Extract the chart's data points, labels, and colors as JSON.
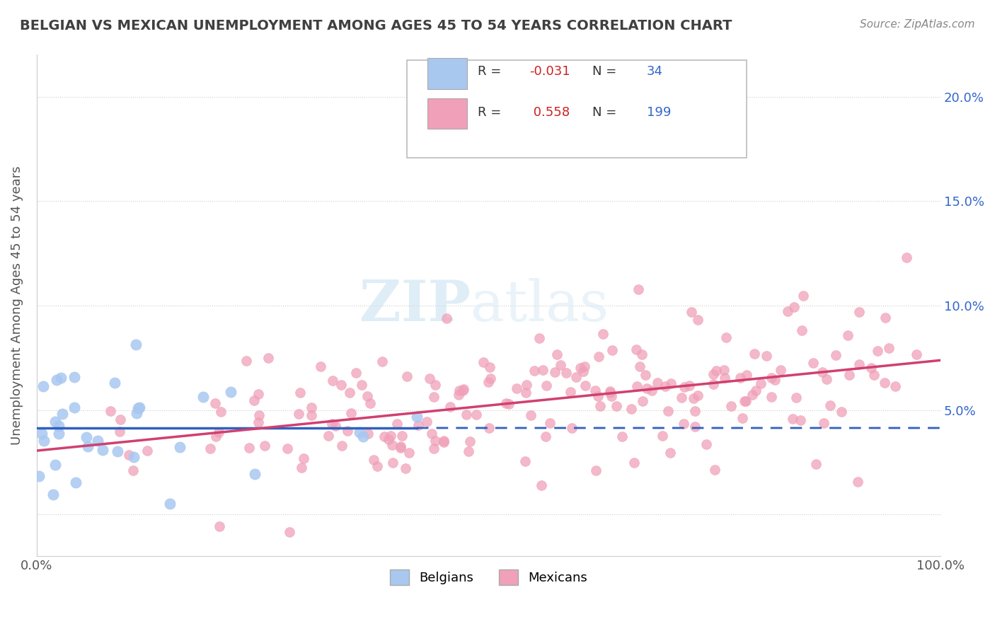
{
  "title": "BELGIAN VS MEXICAN UNEMPLOYMENT AMONG AGES 45 TO 54 YEARS CORRELATION CHART",
  "source": "Source: ZipAtlas.com",
  "ylabel": "Unemployment Among Ages 45 to 54 years",
  "xlim": [
    0,
    100
  ],
  "ylim": [
    -2,
    22
  ],
  "yticks": [
    0,
    5,
    10,
    15,
    20
  ],
  "ytick_labels": [
    "",
    "5.0%",
    "10.0%",
    "15.0%",
    "20.0%"
  ],
  "belgian_R": -0.031,
  "belgian_N": 34,
  "mexican_R": 0.558,
  "mexican_N": 199,
  "belgian_color": "#a8c8f0",
  "mexican_color": "#f0a0b8",
  "belgian_line_color": "#3060c0",
  "mexican_line_color": "#d04070",
  "legend_label_1": "Belgians",
  "legend_label_2": "Mexicans",
  "watermark_zip": "ZIP",
  "watermark_atlas": "atlas",
  "background_color": "#ffffff",
  "grid_color": "#cccccc",
  "title_color": "#404040",
  "belgian_seed": 42,
  "mexican_seed": 123,
  "belgian_x_std": 12,
  "belgian_y_intercept": 4.5,
  "belgian_y_slope": -0.005,
  "mexican_y_intercept": 3.5,
  "mexican_y_slope": 0.04
}
